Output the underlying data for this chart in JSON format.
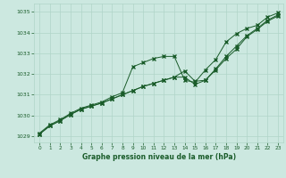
{
  "title": "Graphe pression niveau de la mer (hPa)",
  "background_color": "#cce8e0",
  "grid_color": "#b0d4c8",
  "line_color": "#1a5c2a",
  "marker_color": "#1a5c2a",
  "xlim": [
    -0.5,
    23.5
  ],
  "ylim": [
    1028.7,
    1035.4
  ],
  "xticks": [
    0,
    1,
    2,
    3,
    4,
    5,
    6,
    7,
    8,
    9,
    10,
    11,
    12,
    13,
    14,
    15,
    16,
    17,
    18,
    19,
    20,
    21,
    22,
    23
  ],
  "yticks": [
    1029,
    1030,
    1031,
    1032,
    1033,
    1034,
    1035
  ],
  "series1_x": [
    0,
    1,
    2,
    3,
    4,
    5,
    6,
    7,
    8,
    9,
    10,
    11,
    12,
    13,
    14,
    15,
    16,
    17,
    18,
    19,
    20,
    21,
    22,
    23
  ],
  "series1_y": [
    1029.15,
    1029.55,
    1029.8,
    1030.1,
    1030.35,
    1030.5,
    1030.65,
    1030.9,
    1031.1,
    1032.35,
    1032.55,
    1032.75,
    1032.85,
    1032.85,
    1031.7,
    1031.6,
    1032.2,
    1032.7,
    1033.55,
    1033.95,
    1034.2,
    1034.35,
    1034.75,
    1034.95
  ],
  "series2_x": [
    0,
    1,
    2,
    3,
    4,
    5,
    6,
    7,
    8,
    9,
    10,
    11,
    12,
    13,
    14,
    15,
    16,
    17,
    18,
    19,
    20,
    21,
    22,
    23
  ],
  "series2_y": [
    1029.1,
    1029.5,
    1029.75,
    1030.05,
    1030.3,
    1030.45,
    1030.6,
    1030.8,
    1031.0,
    1031.2,
    1031.4,
    1031.55,
    1031.7,
    1031.85,
    1031.85,
    1031.5,
    1031.7,
    1032.25,
    1032.85,
    1033.35,
    1033.85,
    1034.2,
    1034.6,
    1034.85
  ],
  "series3_x": [
    0,
    1,
    2,
    3,
    4,
    5,
    6,
    7,
    8,
    9,
    10,
    11,
    12,
    13,
    14,
    15,
    16,
    17,
    18,
    19,
    20,
    21,
    22,
    23
  ],
  "series3_y": [
    1029.1,
    1029.5,
    1029.75,
    1030.05,
    1030.3,
    1030.45,
    1030.6,
    1030.8,
    1031.0,
    1031.2,
    1031.4,
    1031.55,
    1031.7,
    1031.85,
    1032.15,
    1031.65,
    1031.7,
    1032.2,
    1032.75,
    1033.2,
    1033.8,
    1034.15,
    1034.55,
    1034.8
  ]
}
